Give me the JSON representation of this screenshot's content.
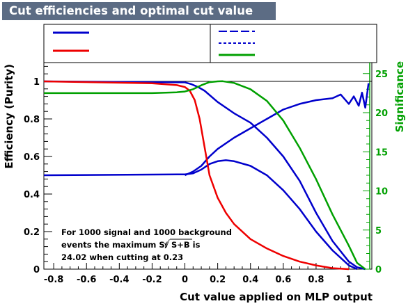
{
  "title": "Cut efficiencies and optimal cut value",
  "chart_data": {
    "type": "line",
    "xlabel": "Cut value applied on MLP output",
    "ylabel": "Efficiency (Purity)",
    "y2label": "Significance",
    "xlim": [
      -0.86,
      1.14
    ],
    "ylim": [
      0,
      1.1
    ],
    "y2lim": [
      0,
      26.4
    ],
    "xticks": [
      "-0.8",
      "-0.6",
      "-0.4",
      "-0.2",
      "0",
      "0.2",
      "0.4",
      "0.6",
      "0.8",
      "1"
    ],
    "yticks": [
      "0",
      "0.2",
      "0.4",
      "0.6",
      "0.8",
      "1"
    ],
    "y2ticks": [
      "0",
      "5",
      "10",
      "15",
      "20",
      "25"
    ],
    "legend_entries": [
      "",
      "",
      "",
      "",
      ""
    ],
    "annotation": [
      "For 1000 signal and 1000 background",
      "events the maximum S/",
      "S+B is",
      "24.02 when cutting at  0.23"
    ],
    "colors": {
      "signal": "#0000cc",
      "background": "#ee0000",
      "significance": "#00a000",
      "title_bg": "#5c6c84"
    },
    "series": [
      {
        "axis": "left",
        "color": "#0000cc",
        "x": [
          -0.86,
          0.0,
          0.04,
          0.08,
          0.12,
          0.2,
          0.3,
          0.4,
          0.5,
          0.6,
          0.7,
          0.8,
          0.9,
          1.0,
          1.05,
          1.1
        ],
        "y": [
          1.0,
          0.995,
          0.985,
          0.97,
          0.95,
          0.89,
          0.83,
          0.78,
          0.7,
          0.6,
          0.47,
          0.3,
          0.15,
          0.04,
          0.01,
          0.0
        ]
      },
      {
        "axis": "left",
        "color": "#0000cc",
        "x": [
          -0.86,
          0.0,
          0.05,
          0.1,
          0.15,
          0.2,
          0.25,
          0.3,
          0.4,
          0.5,
          0.6,
          0.7,
          0.8,
          0.9,
          1.0,
          1.05
        ],
        "y": [
          0.5,
          0.505,
          0.51,
          0.53,
          0.56,
          0.575,
          0.58,
          0.575,
          0.55,
          0.5,
          0.42,
          0.32,
          0.2,
          0.1,
          0.02,
          0.0
        ]
      },
      {
        "axis": "left",
        "color": "#0000cc",
        "x": [
          0.0,
          0.05,
          0.1,
          0.15,
          0.2,
          0.3,
          0.4,
          0.5,
          0.6,
          0.7,
          0.8,
          0.9,
          0.95,
          1.0,
          1.03,
          1.06,
          1.08,
          1.1,
          1.12
        ],
        "y": [
          0.5,
          0.52,
          0.55,
          0.6,
          0.64,
          0.7,
          0.75,
          0.8,
          0.85,
          0.88,
          0.9,
          0.91,
          0.93,
          0.88,
          0.92,
          0.87,
          0.94,
          0.86,
          0.99
        ]
      },
      {
        "axis": "left",
        "color": "#ee0000",
        "x": [
          -0.86,
          -0.2,
          -0.05,
          0.0,
          0.03,
          0.06,
          0.09,
          0.12,
          0.15,
          0.2,
          0.25,
          0.3,
          0.4,
          0.5,
          0.6,
          0.7,
          0.8,
          0.9,
          1.0
        ],
        "y": [
          1.0,
          0.99,
          0.98,
          0.97,
          0.95,
          0.9,
          0.8,
          0.65,
          0.5,
          0.38,
          0.3,
          0.24,
          0.16,
          0.11,
          0.07,
          0.04,
          0.02,
          0.005,
          0.0
        ]
      },
      {
        "axis": "right",
        "color": "#00a000",
        "x": [
          -0.86,
          -0.2,
          -0.05,
          0.0,
          0.05,
          0.1,
          0.15,
          0.2,
          0.23,
          0.3,
          0.4,
          0.5,
          0.6,
          0.7,
          0.8,
          0.9,
          1.0,
          1.05,
          1.1
        ],
        "y": [
          22.5,
          22.5,
          22.6,
          22.7,
          23.0,
          23.5,
          23.9,
          24.0,
          24.02,
          23.8,
          23.0,
          21.5,
          19.0,
          15.5,
          11.5,
          7.0,
          3.0,
          0.8,
          0.0
        ]
      }
    ]
  }
}
